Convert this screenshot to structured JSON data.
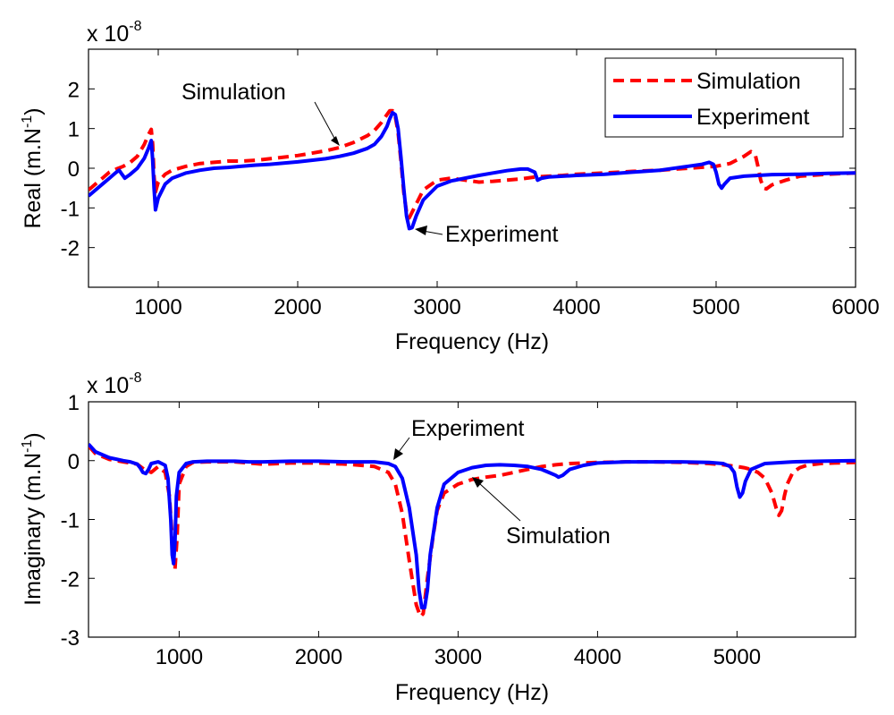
{
  "colors": {
    "simulation": "#ff0000",
    "experiment": "#0000ff",
    "axis": "#000000"
  },
  "chart_data": [
    {
      "type": "line",
      "id": "real",
      "xlabel": "Frequency (Hz)",
      "ylabel": "Real (m.N",
      "ylabel_sup": "-1",
      "ylabel_close": ")",
      "exponent_base": "x 10",
      "exponent_power": "-8",
      "xlim": [
        500,
        6000
      ],
      "ylim": [
        -3,
        3
      ],
      "xticks": [
        1000,
        2000,
        3000,
        4000,
        5000,
        6000
      ],
      "yticks": [
        2,
        1,
        0,
        -1,
        -2
      ],
      "legend": {
        "placement": "top-right",
        "entries": [
          "Simulation",
          "Experiment"
        ]
      },
      "annotations": [
        {
          "text": "Simulation",
          "target_series": "Simulation",
          "target": [
            2330,
            0.62
          ],
          "text_anchor_data": [
            1550,
            2.05
          ]
        },
        {
          "text": "Experiment",
          "target_series": "Experiment",
          "target": [
            2820,
            -1.52
          ],
          "text_anchor_data": [
            3180,
            -1.75
          ]
        }
      ],
      "series": [
        {
          "name": "Simulation",
          "style": "dashed",
          "x": [
            500,
            550,
            600,
            650,
            700,
            750,
            800,
            850,
            900,
            930,
            950,
            960,
            970,
            980,
            1000,
            1050,
            1100,
            1200,
            1300,
            1400,
            1500,
            1600,
            1700,
            1800,
            1900,
            2000,
            2100,
            2200,
            2300,
            2400,
            2500,
            2550,
            2600,
            2640,
            2660,
            2680,
            2700,
            2720,
            2740,
            2760,
            2780,
            2800,
            2850,
            2900,
            3000,
            3100,
            3200,
            3300,
            3400,
            3500,
            3600,
            3700,
            3800,
            3900,
            4000,
            4200,
            4400,
            4600,
            4800,
            5000,
            5100,
            5200,
            5250,
            5280,
            5300,
            5320,
            5340,
            5360,
            5400,
            5500,
            5600,
            5800,
            6000
          ],
          "y": [
            -0.55,
            -0.4,
            -0.25,
            -0.1,
            -0.02,
            0.05,
            0.15,
            0.3,
            0.6,
            0.85,
            0.98,
            0.6,
            -0.2,
            -0.6,
            -0.35,
            -0.15,
            -0.05,
            0.05,
            0.12,
            0.15,
            0.18,
            0.18,
            0.2,
            0.24,
            0.28,
            0.32,
            0.38,
            0.44,
            0.52,
            0.65,
            0.82,
            0.95,
            1.15,
            1.35,
            1.45,
            1.45,
            1.3,
            0.9,
            0.2,
            -0.6,
            -1.1,
            -1.25,
            -0.9,
            -0.55,
            -0.3,
            -0.25,
            -0.3,
            -0.35,
            -0.33,
            -0.3,
            -0.27,
            -0.22,
            -0.2,
            -0.18,
            -0.15,
            -0.12,
            -0.08,
            -0.05,
            0.0,
            0.05,
            0.12,
            0.3,
            0.42,
            0.35,
            0.05,
            -0.3,
            -0.5,
            -0.52,
            -0.42,
            -0.3,
            -0.2,
            -0.15,
            -0.12
          ]
        },
        {
          "name": "Experiment",
          "style": "solid",
          "x": [
            500,
            550,
            600,
            650,
            700,
            720,
            740,
            760,
            800,
            850,
            900,
            930,
            950,
            960,
            970,
            980,
            1000,
            1050,
            1100,
            1200,
            1300,
            1400,
            1500,
            1600,
            1700,
            1800,
            1900,
            2000,
            2100,
            2200,
            2300,
            2400,
            2500,
            2550,
            2600,
            2640,
            2660,
            2680,
            2700,
            2720,
            2740,
            2760,
            2780,
            2800,
            2820,
            2850,
            2900,
            3000,
            3100,
            3200,
            3300,
            3400,
            3500,
            3600,
            3650,
            3700,
            3720,
            3750,
            3800,
            3900,
            4000,
            4200,
            4400,
            4600,
            4800,
            4900,
            4950,
            4980,
            5000,
            5020,
            5040,
            5060,
            5100,
            5200,
            5300,
            5400,
            5600,
            5800,
            6000
          ],
          "y": [
            -0.7,
            -0.55,
            -0.4,
            -0.25,
            -0.1,
            -0.05,
            -0.15,
            -0.25,
            -0.15,
            0.0,
            0.25,
            0.5,
            0.7,
            0.2,
            -0.5,
            -1.05,
            -0.75,
            -0.4,
            -0.25,
            -0.12,
            -0.05,
            0.0,
            0.02,
            0.05,
            0.08,
            0.1,
            0.13,
            0.16,
            0.2,
            0.24,
            0.3,
            0.38,
            0.5,
            0.6,
            0.8,
            1.05,
            1.25,
            1.4,
            1.35,
            1.0,
            0.3,
            -0.5,
            -1.2,
            -1.52,
            -1.5,
            -1.2,
            -0.8,
            -0.45,
            -0.32,
            -0.25,
            -0.18,
            -0.12,
            -0.06,
            -0.02,
            -0.02,
            -0.1,
            -0.3,
            -0.25,
            -0.22,
            -0.2,
            -0.18,
            -0.15,
            -0.1,
            -0.05,
            0.05,
            0.1,
            0.15,
            0.1,
            -0.1,
            -0.4,
            -0.5,
            -0.4,
            -0.25,
            -0.2,
            -0.18,
            -0.16,
            -0.15,
            -0.13,
            -0.12
          ]
        }
      ]
    },
    {
      "type": "line",
      "id": "imaginary",
      "xlabel": "Frequency (Hz)",
      "ylabel": "Imaginary (m.N",
      "ylabel_sup": "-1",
      "ylabel_close": ")",
      "exponent_base": "x 10",
      "exponent_power": "-8",
      "xlim": [
        350,
        5850
      ],
      "ylim": [
        -3,
        1
      ],
      "xticks": [
        1000,
        2000,
        3000,
        4000,
        5000
      ],
      "yticks": [
        1,
        0,
        -1,
        -2,
        -3
      ],
      "annotations": [
        {
          "text": "Experiment",
          "target_series": "Experiment",
          "target": [
            2500,
            -0.02
          ],
          "text_anchor_data": [
            2620,
            0.55
          ]
        },
        {
          "text": "Simulation",
          "target_series": "Simulation",
          "target": [
            3070,
            -0.3
          ],
          "text_anchor_data": [
            3300,
            -1.3
          ]
        }
      ],
      "series": [
        {
          "name": "Simulation",
          "style": "dashed",
          "x": [
            350,
            400,
            500,
            600,
            700,
            750,
            800,
            850,
            900,
            930,
            950,
            960,
            970,
            985,
            1000,
            1050,
            1100,
            1200,
            1400,
            1600,
            1800,
            2000,
            2200,
            2400,
            2500,
            2550,
            2600,
            2650,
            2700,
            2730,
            2750,
            2780,
            2820,
            2850,
            2900,
            3000,
            3100,
            3200,
            3300,
            3400,
            3500,
            3600,
            3700,
            3800,
            3900,
            4000,
            4200,
            4400,
            4600,
            4800,
            4900,
            5000,
            5050,
            5100,
            5150,
            5200,
            5250,
            5280,
            5300,
            5320,
            5340,
            5360,
            5400,
            5450,
            5500,
            5600,
            5700,
            5850
          ],
          "y": [
            0.25,
            0.12,
            0.02,
            -0.02,
            -0.06,
            -0.15,
            -0.2,
            -0.1,
            -0.2,
            -0.6,
            -1.3,
            -1.75,
            -1.85,
            -1.3,
            -0.4,
            -0.1,
            -0.03,
            -0.02,
            -0.02,
            -0.06,
            -0.04,
            -0.04,
            -0.06,
            -0.1,
            -0.2,
            -0.4,
            -0.9,
            -1.7,
            -2.45,
            -2.65,
            -2.6,
            -2.0,
            -1.3,
            -0.85,
            -0.55,
            -0.4,
            -0.32,
            -0.28,
            -0.25,
            -0.2,
            -0.15,
            -0.1,
            -0.07,
            -0.05,
            -0.04,
            -0.03,
            -0.02,
            -0.02,
            -0.03,
            -0.05,
            -0.07,
            -0.1,
            -0.12,
            -0.15,
            -0.2,
            -0.3,
            -0.55,
            -0.8,
            -0.93,
            -0.85,
            -0.6,
            -0.4,
            -0.2,
            -0.12,
            -0.08,
            -0.05,
            -0.04,
            -0.03
          ]
        },
        {
          "name": "Experiment",
          "style": "solid",
          "x": [
            350,
            400,
            500,
            600,
            650,
            700,
            720,
            740,
            760,
            780,
            800,
            850,
            900,
            920,
            940,
            950,
            960,
            970,
            980,
            1000,
            1050,
            1100,
            1200,
            1400,
            1500,
            1600,
            1800,
            2000,
            2200,
            2400,
            2500,
            2550,
            2600,
            2650,
            2700,
            2720,
            2740,
            2760,
            2780,
            2800,
            2850,
            2900,
            3000,
            3100,
            3200,
            3300,
            3400,
            3500,
            3600,
            3650,
            3700,
            3720,
            3750,
            3800,
            3900,
            4000,
            4200,
            4400,
            4600,
            4800,
            4900,
            4950,
            4980,
            5000,
            5020,
            5040,
            5060,
            5100,
            5200,
            5400,
            5600,
            5850
          ],
          "y": [
            0.28,
            0.15,
            0.05,
            0.0,
            -0.02,
            -0.06,
            -0.12,
            -0.2,
            -0.22,
            -0.15,
            -0.05,
            -0.02,
            -0.08,
            -0.3,
            -1.0,
            -1.6,
            -1.75,
            -1.4,
            -0.6,
            -0.2,
            -0.05,
            -0.02,
            -0.01,
            -0.01,
            -0.02,
            -0.02,
            -0.01,
            -0.01,
            -0.02,
            -0.02,
            -0.05,
            -0.1,
            -0.3,
            -0.8,
            -1.6,
            -2.2,
            -2.5,
            -2.5,
            -2.2,
            -1.6,
            -0.8,
            -0.4,
            -0.2,
            -0.12,
            -0.08,
            -0.07,
            -0.08,
            -0.1,
            -0.15,
            -0.2,
            -0.25,
            -0.28,
            -0.25,
            -0.15,
            -0.08,
            -0.04,
            -0.02,
            -0.02,
            -0.02,
            -0.03,
            -0.05,
            -0.1,
            -0.2,
            -0.45,
            -0.62,
            -0.55,
            -0.35,
            -0.15,
            -0.05,
            -0.02,
            -0.01,
            0.0
          ]
        }
      ]
    }
  ]
}
